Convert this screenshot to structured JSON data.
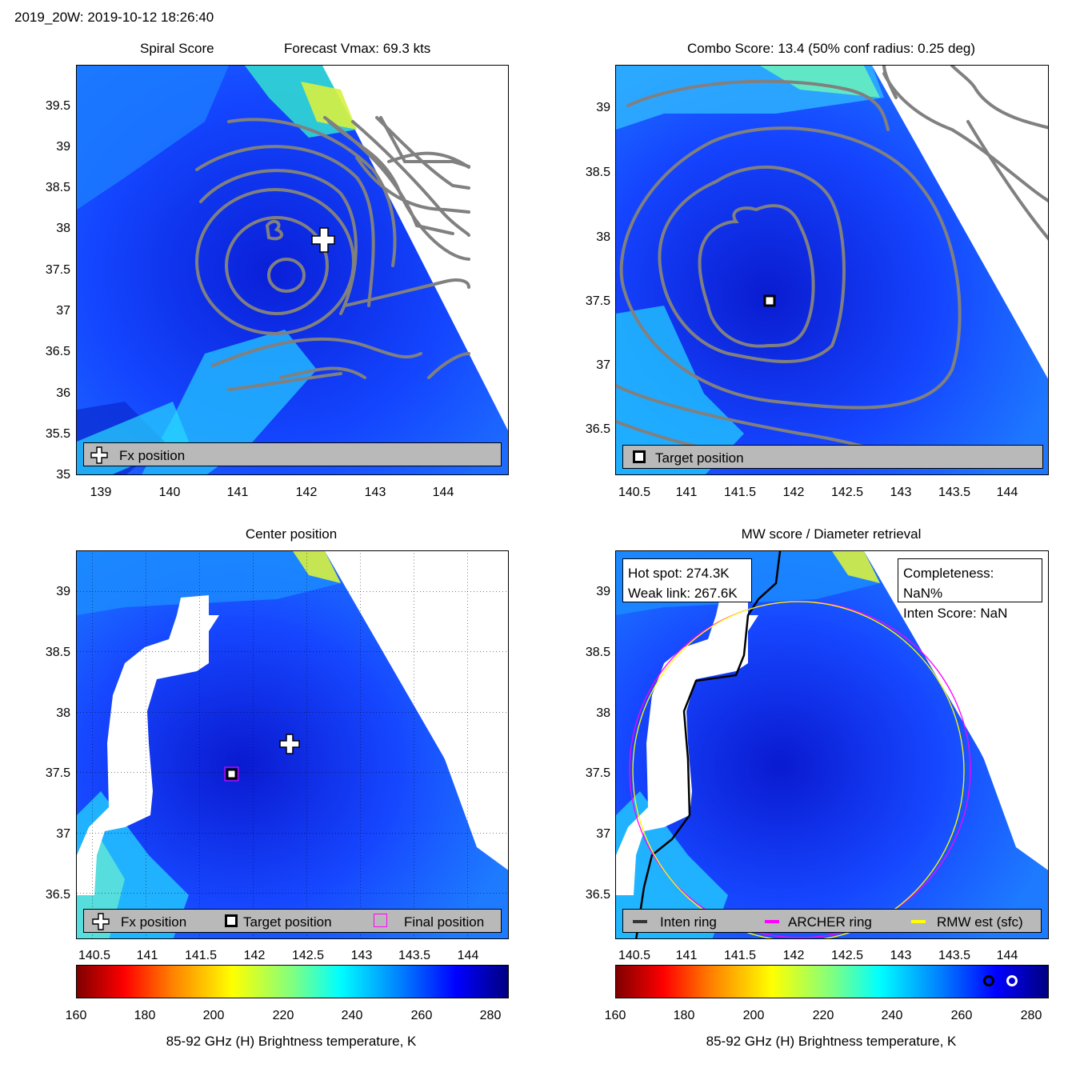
{
  "figure": {
    "title": "2019_20W: 2019-10-12 18:26:40"
  },
  "panels": {
    "spiral": {
      "title_left": "Spiral Score",
      "title_right": "Forecast Vmax: 69.3 kts",
      "x_ticks": [
        "139",
        "140",
        "141",
        "142",
        "143",
        "144"
      ],
      "y_ticks": [
        "39.5",
        "39",
        "38.5",
        "38",
        "37.5",
        "37",
        "36.5",
        "36",
        "35.5",
        "35"
      ],
      "legend": [
        "Fx position"
      ]
    },
    "combo": {
      "title": "Combo Score: 13.4  (50% conf radius: 0.25 deg)",
      "x_ticks": [
        "140.5",
        "141",
        "141.5",
        "142",
        "142.5",
        "143",
        "143.5",
        "144"
      ],
      "y_ticks": [
        "39",
        "38.5",
        "38",
        "37.5",
        "37",
        "36.5"
      ],
      "legend": [
        "Target position"
      ]
    },
    "center": {
      "title": "Center position",
      "x_ticks": [
        "140.5",
        "141",
        "141.5",
        "142",
        "142.5",
        "143",
        "143.5",
        "144"
      ],
      "y_ticks": [
        "39",
        "38.5",
        "38",
        "37.5",
        "37",
        "36.5"
      ],
      "legend": [
        "Fx position",
        "Target position",
        "Final position"
      ]
    },
    "mw": {
      "title": "MW score / Diameter retrieval",
      "x_ticks": [
        "140.5",
        "141",
        "141.5",
        "142",
        "142.5",
        "143",
        "143.5",
        "144"
      ],
      "y_ticks": [
        "39",
        "38.5",
        "38",
        "37.5",
        "37",
        "36.5"
      ],
      "info_left": [
        "Hot spot: 274.3K",
        "Weak link: 267.6K"
      ],
      "info_right": [
        "Completeness: NaN%",
        "Inten Score: NaN"
      ],
      "legend": [
        "Inten ring",
        "ARCHER ring",
        "RMW est (sfc)"
      ]
    }
  },
  "colorbar": {
    "ticks": [
      "160",
      "180",
      "200",
      "220",
      "240",
      "260",
      "280"
    ],
    "label": "85-92 GHz (H) Brightness temperature, K"
  },
  "chart_data": [
    {
      "type": "heatmap",
      "title": "Spiral Score",
      "annotation": "Forecast Vmax: 69.3 kts",
      "x_range": [
        138.7,
        144.9
      ],
      "y_range": [
        35,
        40.0
      ],
      "markers": [
        {
          "name": "Fx position",
          "lon": 142.35,
          "lat": 37.75
        }
      ]
    },
    {
      "type": "heatmap",
      "title": "Combo Score: 13.4  (50% conf radius: 0.25 deg)",
      "combo_score": 13.4,
      "conf_radius_deg": 0.25,
      "x_range": [
        140.3,
        144.4
      ],
      "y_range": [
        36.1,
        39.35
      ],
      "markers": [
        {
          "name": "Target position",
          "lon": 141.77,
          "lat": 37.5
        }
      ]
    },
    {
      "type": "heatmap",
      "title": "Center position",
      "x_range": [
        140.3,
        144.4
      ],
      "y_range": [
        36.1,
        39.35
      ],
      "markers": [
        {
          "name": "Fx position",
          "lon": 142.36,
          "lat": 37.74
        },
        {
          "name": "Target position",
          "lon": 141.73,
          "lat": 37.49
        },
        {
          "name": "Final position",
          "lon": 141.73,
          "lat": 37.49
        }
      ]
    },
    {
      "type": "heatmap",
      "title": "MW score / Diameter retrieval",
      "hot_spot_K": 274.3,
      "weak_link_K": 267.6,
      "completeness": "NaN%",
      "inten_score": "NaN",
      "x_range": [
        140.3,
        144.4
      ],
      "y_range": [
        36.1,
        39.35
      ],
      "series": [
        {
          "name": "Inten ring"
        },
        {
          "name": "ARCHER ring"
        },
        {
          "name": "RMW est (sfc)"
        }
      ]
    }
  ],
  "colors": {
    "ring_archer": "#ff00ff",
    "ring_rmw": "#ffff00",
    "contour": "#808080",
    "legend_bg": "#b9b9b9"
  },
  "colorbar_scale": {
    "min": 160,
    "max": 285
  }
}
